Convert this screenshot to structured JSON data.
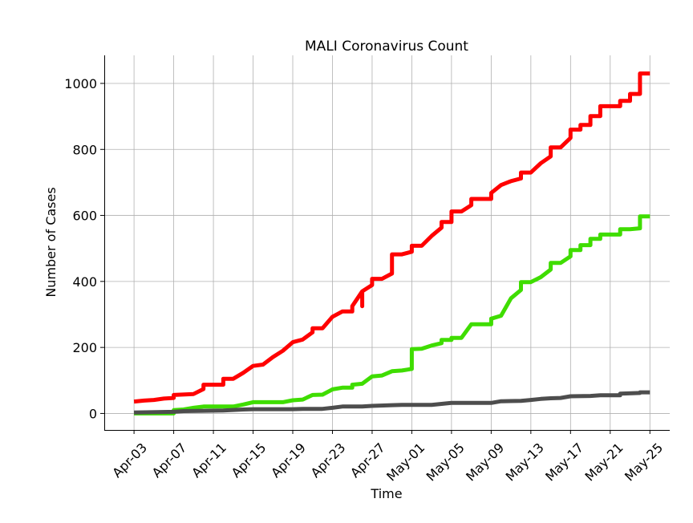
{
  "chart_data": {
    "type": "line",
    "title": "MALI Coronavirus Count",
    "xlabel": "Time",
    "ylabel": "Number of Cases",
    "ylim": [
      -50,
      1085
    ],
    "xlim": [
      "2020-03-31",
      "2020-05-27"
    ],
    "grid": true,
    "legend": "none",
    "x_ticks": [
      "Apr-03",
      "Apr-07",
      "Apr-11",
      "Apr-15",
      "Apr-19",
      "Apr-23",
      "Apr-27",
      "May-01",
      "May-05",
      "May-09",
      "May-13",
      "May-17",
      "May-21",
      "May-25"
    ],
    "y_ticks": [
      0,
      200,
      400,
      600,
      800,
      1000
    ],
    "series": [
      {
        "color": "#ff0000",
        "points": [
          [
            "2020-04-03",
            36
          ],
          [
            "2020-04-04",
            39
          ],
          [
            "2020-04-05",
            41
          ],
          [
            "2020-04-06",
            45
          ],
          [
            "2020-04-07",
            47
          ],
          [
            "2020-04-07",
            56
          ],
          [
            "2020-04-09",
            59
          ],
          [
            "2020-04-10",
            74
          ],
          [
            "2020-04-10",
            87
          ],
          [
            "2020-04-12",
            87
          ],
          [
            "2020-04-12",
            105
          ],
          [
            "2020-04-13",
            105
          ],
          [
            "2020-04-14",
            123
          ],
          [
            "2020-04-15",
            144
          ],
          [
            "2020-04-16",
            148
          ],
          [
            "2020-04-17",
            171
          ],
          [
            "2020-04-18",
            190
          ],
          [
            "2020-04-19",
            216
          ],
          [
            "2020-04-20",
            224
          ],
          [
            "2020-04-21",
            246
          ],
          [
            "2020-04-21",
            258
          ],
          [
            "2020-04-22",
            258
          ],
          [
            "2020-04-23",
            293
          ],
          [
            "2020-04-24",
            309
          ],
          [
            "2020-04-25",
            309
          ],
          [
            "2020-04-25",
            325
          ],
          [
            "2020-04-26",
            370
          ],
          [
            "2020-04-26",
            325
          ],
          [
            "2020-04-26",
            370
          ],
          [
            "2020-04-27",
            389
          ],
          [
            "2020-04-27",
            408
          ],
          [
            "2020-04-28",
            408
          ],
          [
            "2020-04-29",
            424
          ],
          [
            "2020-04-29",
            482
          ],
          [
            "2020-04-30",
            482
          ],
          [
            "2020-05-01",
            490
          ],
          [
            "2020-05-01",
            508
          ],
          [
            "2020-05-02",
            508
          ],
          [
            "2020-05-03",
            538
          ],
          [
            "2020-05-04",
            563
          ],
          [
            "2020-05-04",
            580
          ],
          [
            "2020-05-05",
            580
          ],
          [
            "2020-05-05",
            612
          ],
          [
            "2020-05-06",
            612
          ],
          [
            "2020-05-07",
            631
          ],
          [
            "2020-05-07",
            650
          ],
          [
            "2020-05-08",
            650
          ],
          [
            "2020-05-09",
            650
          ],
          [
            "2020-05-09",
            668
          ],
          [
            "2020-05-10",
            692
          ],
          [
            "2020-05-11",
            704
          ],
          [
            "2020-05-12",
            712
          ],
          [
            "2020-05-12",
            730
          ],
          [
            "2020-05-13",
            730
          ],
          [
            "2020-05-14",
            758
          ],
          [
            "2020-05-15",
            779
          ],
          [
            "2020-05-15",
            806
          ],
          [
            "2020-05-16",
            806
          ],
          [
            "2020-05-17",
            835
          ],
          [
            "2020-05-17",
            860
          ],
          [
            "2020-05-18",
            860
          ],
          [
            "2020-05-18",
            874
          ],
          [
            "2020-05-19",
            874
          ],
          [
            "2020-05-19",
            901
          ],
          [
            "2020-05-20",
            901
          ],
          [
            "2020-05-20",
            931
          ],
          [
            "2020-05-21",
            931
          ],
          [
            "2020-05-22",
            931
          ],
          [
            "2020-05-22",
            947
          ],
          [
            "2020-05-23",
            947
          ],
          [
            "2020-05-23",
            968
          ],
          [
            "2020-05-24",
            968
          ],
          [
            "2020-05-24",
            1030
          ],
          [
            "2020-05-25",
            1030
          ]
        ]
      },
      {
        "color": "#3fdd00",
        "points": [
          [
            "2020-04-03",
            0
          ],
          [
            "2020-04-07",
            0
          ],
          [
            "2020-04-07",
            10
          ],
          [
            "2020-04-08",
            12
          ],
          [
            "2020-04-09",
            17
          ],
          [
            "2020-04-10",
            21
          ],
          [
            "2020-04-13",
            21
          ],
          [
            "2020-04-14",
            27
          ],
          [
            "2020-04-15",
            34
          ],
          [
            "2020-04-18",
            34
          ],
          [
            "2020-04-19",
            40
          ],
          [
            "2020-04-20",
            42
          ],
          [
            "2020-04-21",
            56
          ],
          [
            "2020-04-22",
            57
          ],
          [
            "2020-04-23",
            73
          ],
          [
            "2020-04-24",
            78
          ],
          [
            "2020-04-25",
            78
          ],
          [
            "2020-04-25",
            87
          ],
          [
            "2020-04-26",
            90
          ],
          [
            "2020-04-27",
            112
          ],
          [
            "2020-04-28",
            115
          ],
          [
            "2020-04-29",
            128
          ],
          [
            "2020-04-30",
            130
          ],
          [
            "2020-05-01",
            135
          ],
          [
            "2020-05-01",
            195
          ],
          [
            "2020-05-02",
            196
          ],
          [
            "2020-05-03",
            206
          ],
          [
            "2020-05-04",
            213
          ],
          [
            "2020-05-04",
            223
          ],
          [
            "2020-05-05",
            223
          ],
          [
            "2020-05-05",
            229
          ],
          [
            "2020-05-06",
            229
          ],
          [
            "2020-05-07",
            270
          ],
          [
            "2020-05-08",
            270
          ],
          [
            "2020-05-09",
            270
          ],
          [
            "2020-05-09",
            287
          ],
          [
            "2020-05-10",
            296
          ],
          [
            "2020-05-11",
            349
          ],
          [
            "2020-05-12",
            374
          ],
          [
            "2020-05-12",
            398
          ],
          [
            "2020-05-13",
            398
          ],
          [
            "2020-05-14",
            413
          ],
          [
            "2020-05-15",
            436
          ],
          [
            "2020-05-15",
            456
          ],
          [
            "2020-05-16",
            456
          ],
          [
            "2020-05-17",
            476
          ],
          [
            "2020-05-17",
            495
          ],
          [
            "2020-05-18",
            495
          ],
          [
            "2020-05-18",
            510
          ],
          [
            "2020-05-19",
            510
          ],
          [
            "2020-05-19",
            529
          ],
          [
            "2020-05-20",
            529
          ],
          [
            "2020-05-20",
            542
          ],
          [
            "2020-05-22",
            542
          ],
          [
            "2020-05-22",
            558
          ],
          [
            "2020-05-23",
            558
          ],
          [
            "2020-05-24",
            561
          ],
          [
            "2020-05-24",
            597
          ],
          [
            "2020-05-25",
            597
          ]
        ]
      },
      {
        "color": "#4d4d4d",
        "points": [
          [
            "2020-04-03",
            3
          ],
          [
            "2020-04-07",
            5
          ],
          [
            "2020-04-08",
            7
          ],
          [
            "2020-04-12",
            9
          ],
          [
            "2020-04-14",
            12
          ],
          [
            "2020-04-15",
            13
          ],
          [
            "2020-04-19",
            13
          ],
          [
            "2020-04-20",
            14
          ],
          [
            "2020-04-22",
            14
          ],
          [
            "2020-04-23",
            17
          ],
          [
            "2020-04-24",
            21
          ],
          [
            "2020-04-26",
            21
          ],
          [
            "2020-04-27",
            23
          ],
          [
            "2020-04-29",
            25
          ],
          [
            "2020-04-30",
            26
          ],
          [
            "2020-05-03",
            26
          ],
          [
            "2020-05-04",
            29
          ],
          [
            "2020-05-05",
            32
          ],
          [
            "2020-05-09",
            32
          ],
          [
            "2020-05-10",
            37
          ],
          [
            "2020-05-12",
            38
          ],
          [
            "2020-05-13",
            41
          ],
          [
            "2020-05-14",
            44
          ],
          [
            "2020-05-15",
            46
          ],
          [
            "2020-05-16",
            47
          ],
          [
            "2020-05-17",
            52
          ],
          [
            "2020-05-19",
            53
          ],
          [
            "2020-05-20",
            55
          ],
          [
            "2020-05-22",
            55
          ],
          [
            "2020-05-22",
            60
          ],
          [
            "2020-05-24",
            62
          ],
          [
            "2020-05-24",
            64
          ],
          [
            "2020-05-25",
            64
          ]
        ]
      }
    ]
  }
}
